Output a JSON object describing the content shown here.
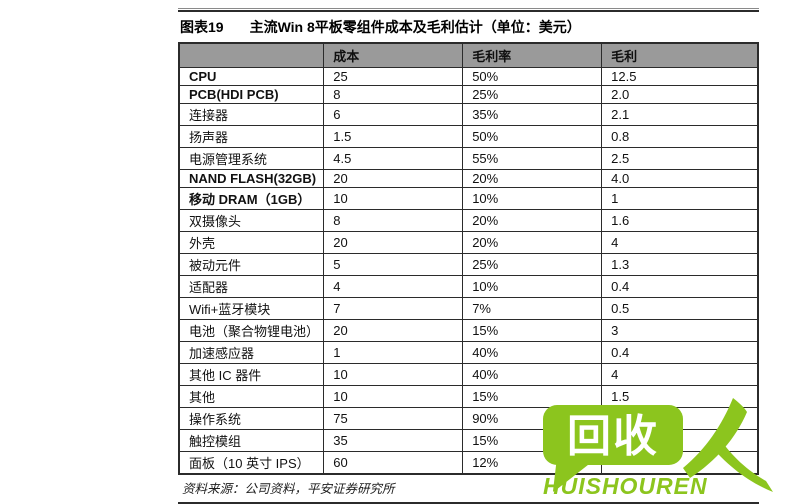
{
  "figure": {
    "label": "图表19",
    "title": "主流Win 8平板零组件成本及毛利估计（单位：美元）",
    "source": "资料来源：公司资料，平安证券研究所"
  },
  "table": {
    "columns": [
      "",
      "成本",
      "毛利率",
      "毛利"
    ],
    "rows": [
      {
        "name": "CPU",
        "cost": "25",
        "margin_rate": "50%",
        "margin": "12.5",
        "bold": true
      },
      {
        "name": "PCB(HDI PCB)",
        "cost": "8",
        "margin_rate": "25%",
        "margin": "2.0",
        "bold": true
      },
      {
        "name": "连接器",
        "cost": "6",
        "margin_rate": "35%",
        "margin": "2.1",
        "bold": false
      },
      {
        "name": "扬声器",
        "cost": "1.5",
        "margin_rate": "50%",
        "margin": "0.8",
        "bold": false
      },
      {
        "name": "电源管理系统",
        "cost": "4.5",
        "margin_rate": "55%",
        "margin": "2.5",
        "bold": false
      },
      {
        "name": "NAND FLASH(32GB)",
        "cost": "20",
        "margin_rate": "20%",
        "margin": "4.0",
        "bold": true
      },
      {
        "name": "移动 DRAM（1GB）",
        "cost": "10",
        "margin_rate": "10%",
        "margin": "1",
        "bold": true
      },
      {
        "name": "双摄像头",
        "cost": "8",
        "margin_rate": "20%",
        "margin": "1.6",
        "bold": false
      },
      {
        "name": "外壳",
        "cost": "20",
        "margin_rate": "20%",
        "margin": "4",
        "bold": false
      },
      {
        "name": "被动元件",
        "cost": "5",
        "margin_rate": "25%",
        "margin": "1.3",
        "bold": false
      },
      {
        "name": "适配器",
        "cost": "4",
        "margin_rate": "10%",
        "margin": "0.4",
        "bold": false
      },
      {
        "name": "Wifi+蓝牙模块",
        "cost": "7",
        "margin_rate": "7%",
        "margin": "0.5",
        "bold": false
      },
      {
        "name": "电池（聚合物锂电池）",
        "cost": "20",
        "margin_rate": "15%",
        "margin": "3",
        "bold": false
      },
      {
        "name": "加速感应器",
        "cost": "1",
        "margin_rate": "40%",
        "margin": "0.4",
        "bold": false
      },
      {
        "name": "其他 IC 器件",
        "cost": "10",
        "margin_rate": "40%",
        "margin": "4",
        "bold": false
      },
      {
        "name": "其他",
        "cost": "10",
        "margin_rate": "15%",
        "margin": "1.5",
        "bold": false
      },
      {
        "name": "操作系统",
        "cost": "75",
        "margin_rate": "90%",
        "margin": "",
        "bold": false
      },
      {
        "name": "触控模组",
        "cost": "35",
        "margin_rate": "15%",
        "margin": "",
        "bold": false
      },
      {
        "name": "面板（10 英寸 IPS）",
        "cost": "60",
        "margin_rate": "12%",
        "margin": "",
        "bold": false
      }
    ]
  },
  "watermark": {
    "logo_text": "回收",
    "person_glyph": "人",
    "brand": "HUISHOUREN",
    "green": "#8cc51e"
  },
  "colors": {
    "header_bg": "#9a9a9a",
    "border": "#2b2b2b",
    "green": "#8cc51e"
  }
}
